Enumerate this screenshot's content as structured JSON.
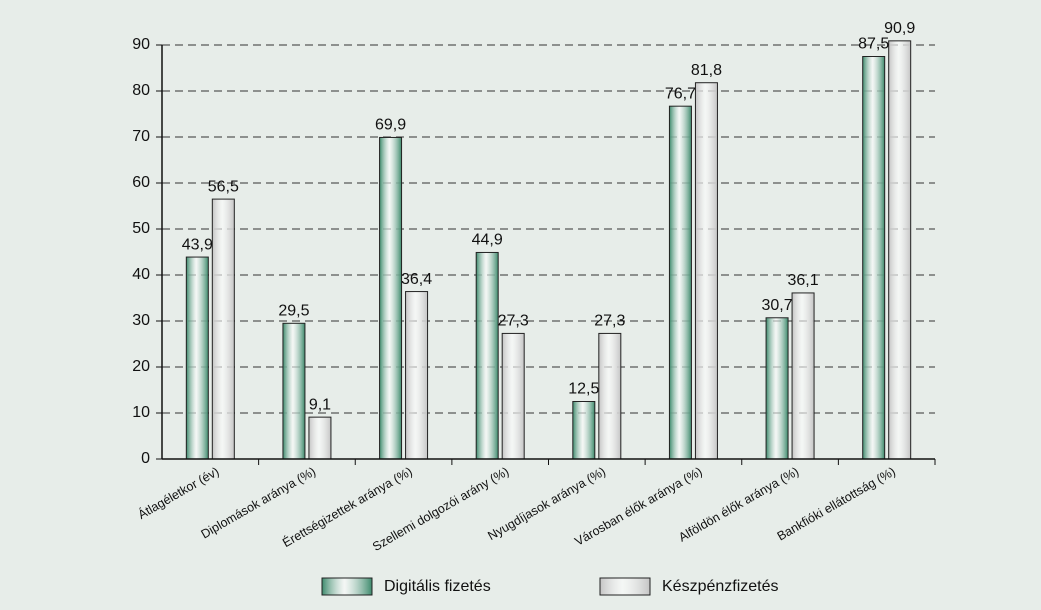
{
  "chart_data": {
    "type": "bar",
    "categories": [
      "Átlagéletkor (év)",
      "Diplomások aránya (%)",
      "Érettségizettek aránya (%)",
      "Szellemi dolgozói arány (%)",
      "Nyugdíjasok aránya (%)",
      "Városban élők aránya (%)",
      "Alföldön élők aránya (%)",
      "Bankfióki ellátottság (%)"
    ],
    "series": [
      {
        "name": "Digitális fizetés",
        "color": "#3d8a6c",
        "values": [
          43.9,
          29.5,
          69.9,
          44.9,
          12.5,
          76.7,
          30.7,
          87.5
        ],
        "value_labels": [
          "43,9",
          "29,5",
          "69,9",
          "44,9",
          "12,5",
          "76,7",
          "30,7",
          "87,5"
        ]
      },
      {
        "name": "Készpénzfizetés",
        "color": "#c4c4c4",
        "values": [
          56.5,
          9.1,
          36.4,
          27.3,
          27.3,
          81.8,
          36.1,
          90.9
        ],
        "value_labels": [
          "56,5",
          "9,1",
          "36,4",
          "27,3",
          "27,3",
          "81,8",
          "36,1",
          "90,9"
        ]
      }
    ],
    "ylim": [
      0,
      90
    ],
    "yticks": [
      0,
      10,
      20,
      30,
      40,
      50,
      60,
      70,
      80,
      90
    ],
    "grid": true,
    "legend": "bottom"
  }
}
